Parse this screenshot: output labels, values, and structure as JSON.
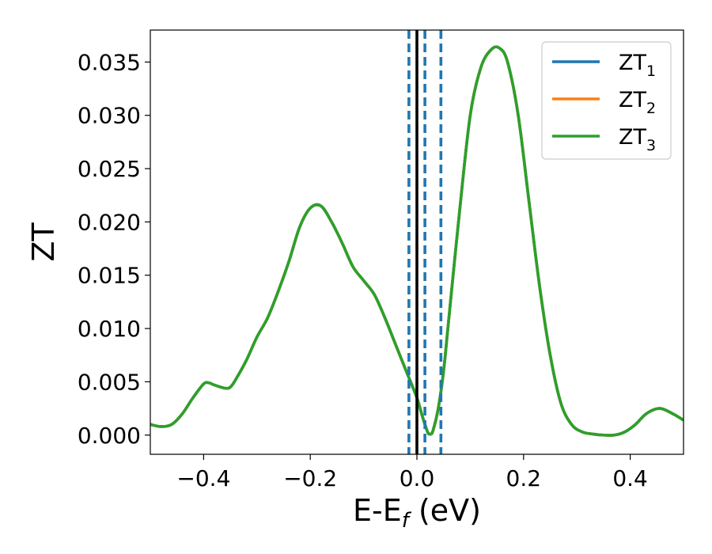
{
  "chart_data": {
    "type": "line",
    "xlabel_main": "E-E",
    "xlabel_sub": "f",
    "xlabel_tail": " (eV)",
    "ylabel": "ZT",
    "xlim": [
      -0.5,
      0.5
    ],
    "ylim": [
      -0.0018,
      0.038
    ],
    "x_ticks": [
      -0.4,
      -0.2,
      0.0,
      0.2,
      0.4
    ],
    "x_tick_labels": [
      "−0.4",
      "−0.2",
      "0.0",
      "0.2",
      "0.4"
    ],
    "y_ticks": [
      0.0,
      0.005,
      0.01,
      0.015,
      0.02,
      0.025,
      0.03,
      0.035
    ],
    "y_tick_labels": [
      "0.000",
      "0.005",
      "0.010",
      "0.015",
      "0.020",
      "0.025",
      "0.030",
      "0.035"
    ],
    "grid": false,
    "legend_position": "top-right",
    "fermi_line": {
      "x": 0.0,
      "color": "#000000"
    },
    "dashed_lines": {
      "x": [
        -0.015,
        0.015,
        0.045
      ],
      "color": "#1f77b4"
    },
    "series": [
      {
        "name_main": "ZT",
        "name_sub": "1",
        "color": "#1f77b4",
        "x": [
          -0.5,
          -0.48,
          -0.46,
          -0.44,
          -0.42,
          -0.4,
          -0.39,
          -0.38,
          -0.36,
          -0.35,
          -0.34,
          -0.32,
          -0.3,
          -0.28,
          -0.26,
          -0.24,
          -0.22,
          -0.2,
          -0.18,
          -0.16,
          -0.14,
          -0.12,
          -0.1,
          -0.08,
          -0.06,
          -0.04,
          -0.02,
          0.0,
          0.01,
          0.02,
          0.025,
          0.03,
          0.04,
          0.05,
          0.06,
          0.08,
          0.1,
          0.12,
          0.14,
          0.155,
          0.17,
          0.19,
          0.21,
          0.23,
          0.25,
          0.27,
          0.29,
          0.31,
          0.33,
          0.35,
          0.37,
          0.39,
          0.41,
          0.43,
          0.455,
          0.48,
          0.5
        ],
        "y": [
          0.001,
          0.0008,
          0.001,
          0.002,
          0.0035,
          0.0048,
          0.0049,
          0.0047,
          0.0044,
          0.0045,
          0.0052,
          0.007,
          0.0092,
          0.011,
          0.0135,
          0.0163,
          0.0195,
          0.0213,
          0.0215,
          0.02,
          0.018,
          0.0158,
          0.0145,
          0.0132,
          0.011,
          0.0085,
          0.006,
          0.0035,
          0.0018,
          0.0003,
          0.0001,
          0.0004,
          0.0025,
          0.006,
          0.011,
          0.021,
          0.03,
          0.0345,
          0.0362,
          0.0363,
          0.035,
          0.03,
          0.022,
          0.014,
          0.0075,
          0.003,
          0.001,
          0.0003,
          0.0001,
          0.0,
          0.0,
          0.0003,
          0.001,
          0.002,
          0.0025,
          0.002,
          0.0014
        ]
      },
      {
        "name_main": "ZT",
        "name_sub": "2",
        "color": "#ff7f0e",
        "x": [
          -0.5,
          -0.48,
          -0.46,
          -0.44,
          -0.42,
          -0.4,
          -0.39,
          -0.38,
          -0.36,
          -0.35,
          -0.34,
          -0.32,
          -0.3,
          -0.28,
          -0.26,
          -0.24,
          -0.22,
          -0.2,
          -0.18,
          -0.16,
          -0.14,
          -0.12,
          -0.1,
          -0.08,
          -0.06,
          -0.04,
          -0.02,
          0.0,
          0.01,
          0.02,
          0.025,
          0.03,
          0.04,
          0.05,
          0.06,
          0.08,
          0.1,
          0.12,
          0.14,
          0.155,
          0.17,
          0.19,
          0.21,
          0.23,
          0.25,
          0.27,
          0.29,
          0.31,
          0.33,
          0.35,
          0.37,
          0.39,
          0.41,
          0.43,
          0.455,
          0.48,
          0.5
        ],
        "y": [
          0.001,
          0.0008,
          0.001,
          0.002,
          0.0035,
          0.0048,
          0.0049,
          0.0047,
          0.0044,
          0.0045,
          0.0052,
          0.007,
          0.0092,
          0.011,
          0.0135,
          0.0163,
          0.0195,
          0.0213,
          0.0215,
          0.02,
          0.018,
          0.0158,
          0.0145,
          0.0132,
          0.011,
          0.0085,
          0.006,
          0.0035,
          0.0018,
          0.0003,
          0.0001,
          0.0004,
          0.0025,
          0.006,
          0.011,
          0.021,
          0.03,
          0.0345,
          0.0362,
          0.0363,
          0.035,
          0.03,
          0.022,
          0.014,
          0.0075,
          0.003,
          0.001,
          0.0003,
          0.0001,
          0.0,
          0.0,
          0.0003,
          0.001,
          0.002,
          0.0025,
          0.002,
          0.0014
        ]
      },
      {
        "name_main": "ZT",
        "name_sub": "3",
        "color": "#2ca02c",
        "x": [
          -0.5,
          -0.48,
          -0.46,
          -0.44,
          -0.42,
          -0.4,
          -0.39,
          -0.38,
          -0.36,
          -0.35,
          -0.34,
          -0.32,
          -0.3,
          -0.28,
          -0.26,
          -0.24,
          -0.22,
          -0.2,
          -0.18,
          -0.16,
          -0.14,
          -0.12,
          -0.1,
          -0.08,
          -0.06,
          -0.04,
          -0.02,
          0.0,
          0.01,
          0.02,
          0.025,
          0.03,
          0.04,
          0.05,
          0.06,
          0.08,
          0.1,
          0.12,
          0.14,
          0.155,
          0.17,
          0.19,
          0.21,
          0.23,
          0.25,
          0.27,
          0.29,
          0.31,
          0.33,
          0.35,
          0.37,
          0.39,
          0.41,
          0.43,
          0.455,
          0.48,
          0.5
        ],
        "y": [
          0.001,
          0.0008,
          0.001,
          0.002,
          0.0035,
          0.0048,
          0.0049,
          0.0047,
          0.0044,
          0.0045,
          0.0052,
          0.007,
          0.0092,
          0.011,
          0.0135,
          0.0163,
          0.0195,
          0.0213,
          0.0215,
          0.02,
          0.018,
          0.0158,
          0.0145,
          0.0132,
          0.011,
          0.0085,
          0.006,
          0.0035,
          0.0018,
          0.0003,
          0.0001,
          0.0004,
          0.0025,
          0.006,
          0.011,
          0.021,
          0.03,
          0.0345,
          0.0362,
          0.0363,
          0.035,
          0.03,
          0.022,
          0.014,
          0.0075,
          0.003,
          0.001,
          0.0003,
          0.0001,
          0.0,
          0.0,
          0.0003,
          0.001,
          0.002,
          0.0025,
          0.002,
          0.0014
        ]
      }
    ]
  }
}
